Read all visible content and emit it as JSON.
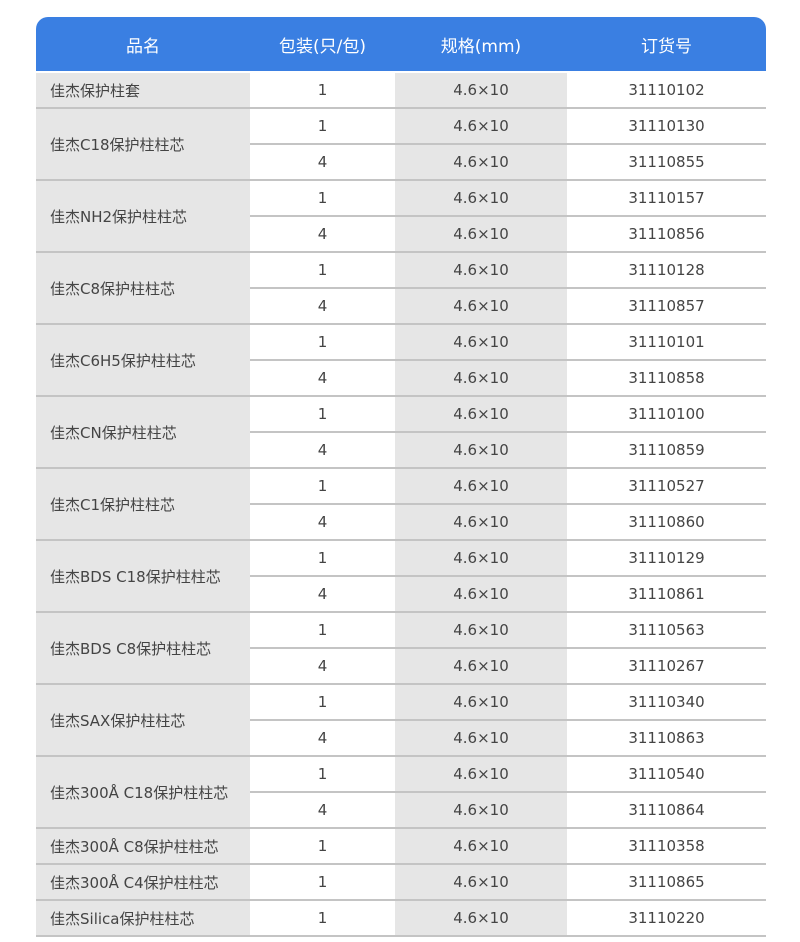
{
  "table": {
    "header": [
      "品名",
      "包装(只/包)",
      "规格(mm)",
      "订货号"
    ],
    "groups": [
      {
        "name": "佳杰保护柱套",
        "rows": [
          [
            "1",
            "4.6×10",
            "31110102"
          ]
        ]
      },
      {
        "name": "佳杰C18保护柱柱芯",
        "rows": [
          [
            "1",
            "4.6×10",
            "31110130"
          ],
          [
            "4",
            "4.6×10",
            "31110855"
          ]
        ]
      },
      {
        "name": "佳杰NH2保护柱柱芯",
        "rows": [
          [
            "1",
            "4.6×10",
            "31110157"
          ],
          [
            "4",
            "4.6×10",
            "31110856"
          ]
        ]
      },
      {
        "name": "佳杰C8保护柱柱芯",
        "rows": [
          [
            "1",
            "4.6×10",
            "31110128"
          ],
          [
            "4",
            "4.6×10",
            "31110857"
          ]
        ]
      },
      {
        "name": "佳杰C6H5保护柱柱芯",
        "rows": [
          [
            "1",
            "4.6×10",
            "31110101"
          ],
          [
            "4",
            "4.6×10",
            "31110858"
          ]
        ]
      },
      {
        "name": "佳杰CN保护柱柱芯",
        "rows": [
          [
            "1",
            "4.6×10",
            "31110100"
          ],
          [
            "4",
            "4.6×10",
            "31110859"
          ]
        ]
      },
      {
        "name": "佳杰C1保护柱柱芯",
        "rows": [
          [
            "1",
            "4.6×10",
            "31110527"
          ],
          [
            "4",
            "4.6×10",
            "31110860"
          ]
        ]
      },
      {
        "name": "佳杰BDS C18保护柱柱芯",
        "rows": [
          [
            "1",
            "4.6×10",
            "31110129"
          ],
          [
            "4",
            "4.6×10",
            "31110861"
          ]
        ]
      },
      {
        "name": "佳杰BDS C8保护柱柱芯",
        "rows": [
          [
            "1",
            "4.6×10",
            "31110563"
          ],
          [
            "4",
            "4.6×10",
            "31110267"
          ]
        ]
      },
      {
        "name": "佳杰SAX保护柱柱芯",
        "rows": [
          [
            "1",
            "4.6×10",
            "31110340"
          ],
          [
            "4",
            "4.6×10",
            "31110863"
          ]
        ]
      },
      {
        "name": "佳杰300Å C18保护柱柱芯",
        "rows": [
          [
            "1",
            "4.6×10",
            "31110540"
          ],
          [
            "4",
            "4.6×10",
            "31110864"
          ]
        ]
      },
      {
        "name": "佳杰300Å C8保护柱柱芯",
        "rows": [
          [
            "1",
            "4.6×10",
            "31110358"
          ]
        ]
      },
      {
        "name": "佳杰300Å C4保护柱柱芯",
        "rows": [
          [
            "1",
            "4.6×10",
            "31110865"
          ]
        ]
      },
      {
        "name": "佳杰Silica保护柱柱芯",
        "rows": [
          [
            "1",
            "4.6×10",
            "31110220"
          ]
        ]
      }
    ]
  }
}
